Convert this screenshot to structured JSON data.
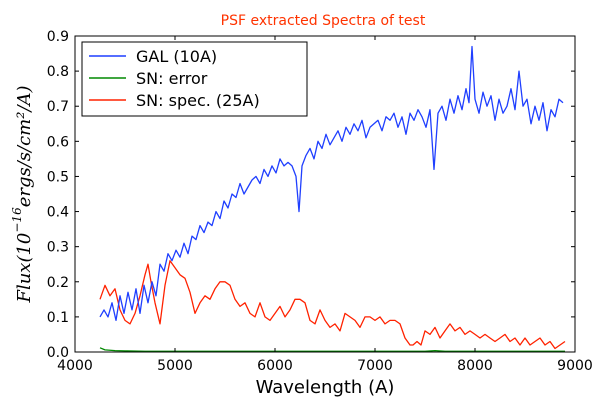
{
  "chart_data": {
    "type": "line",
    "title": "PSF extracted Spectra of test",
    "xlabel": "Wavelength (A)",
    "ylabel": {
      "main": "Flux(10",
      "exponent": "−16",
      "unit": "ergs/s/cm²/A)"
    },
    "xlim": [
      4000,
      9000
    ],
    "ylim": [
      0.0,
      0.9
    ],
    "xticks": [
      "4000",
      "5000",
      "6000",
      "7000",
      "8000",
      "9000"
    ],
    "yticks": [
      "0.0",
      "0.1",
      "0.2",
      "0.3",
      "0.4",
      "0.5",
      "0.6",
      "0.7",
      "0.8",
      "0.9"
    ],
    "legend_position": "top-left",
    "series": [
      {
        "name": "GAL (10A)",
        "color": "#1f3fff",
        "x": [
          4250,
          4290,
          4330,
          4370,
          4410,
          4450,
          4490,
          4530,
          4570,
          4610,
          4650,
          4690,
          4730,
          4770,
          4810,
          4850,
          4890,
          4930,
          4970,
          5010,
          5050,
          5090,
          5130,
          5170,
          5210,
          5250,
          5290,
          5330,
          5370,
          5410,
          5450,
          5490,
          5530,
          5570,
          5610,
          5650,
          5690,
          5730,
          5770,
          5810,
          5850,
          5890,
          5930,
          5970,
          6010,
          6050,
          6090,
          6130,
          6170,
          6210,
          6240,
          6270,
          6310,
          6350,
          6390,
          6430,
          6470,
          6510,
          6550,
          6590,
          6630,
          6670,
          6710,
          6750,
          6790,
          6830,
          6870,
          6910,
          6950,
          6990,
          7030,
          7070,
          7110,
          7150,
          7190,
          7230,
          7270,
          7310,
          7350,
          7390,
          7430,
          7470,
          7510,
          7550,
          7590,
          7630,
          7670,
          7710,
          7750,
          7790,
          7830,
          7870,
          7910,
          7940,
          7970,
          8000,
          8040,
          8080,
          8120,
          8160,
          8200,
          8240,
          8280,
          8320,
          8360,
          8400,
          8440,
          8480,
          8520,
          8560,
          8600,
          8640,
          8680,
          8720,
          8760,
          8800,
          8840,
          8880
        ],
        "y": [
          0.1,
          0.12,
          0.1,
          0.14,
          0.09,
          0.16,
          0.11,
          0.17,
          0.12,
          0.18,
          0.11,
          0.19,
          0.14,
          0.2,
          0.16,
          0.25,
          0.23,
          0.28,
          0.26,
          0.29,
          0.27,
          0.31,
          0.28,
          0.33,
          0.32,
          0.36,
          0.34,
          0.37,
          0.36,
          0.4,
          0.38,
          0.43,
          0.41,
          0.45,
          0.44,
          0.48,
          0.45,
          0.47,
          0.49,
          0.5,
          0.48,
          0.52,
          0.5,
          0.53,
          0.51,
          0.55,
          0.53,
          0.54,
          0.53,
          0.5,
          0.4,
          0.53,
          0.56,
          0.58,
          0.55,
          0.6,
          0.58,
          0.62,
          0.59,
          0.61,
          0.63,
          0.6,
          0.64,
          0.62,
          0.65,
          0.63,
          0.66,
          0.61,
          0.64,
          0.65,
          0.66,
          0.63,
          0.67,
          0.66,
          0.68,
          0.64,
          0.67,
          0.62,
          0.68,
          0.66,
          0.69,
          0.67,
          0.64,
          0.69,
          0.52,
          0.68,
          0.7,
          0.66,
          0.72,
          0.68,
          0.73,
          0.69,
          0.75,
          0.71,
          0.87,
          0.72,
          0.68,
          0.74,
          0.7,
          0.73,
          0.66,
          0.72,
          0.68,
          0.7,
          0.75,
          0.69,
          0.8,
          0.7,
          0.72,
          0.65,
          0.7,
          0.66,
          0.71,
          0.63,
          0.69,
          0.67,
          0.72,
          0.71
        ]
      },
      {
        "name": "SN: error",
        "color": "#008800",
        "x": [
          4250,
          4300,
          4400,
          4500,
          4700,
          5000,
          5500,
          6000,
          6500,
          7000,
          7500,
          7600,
          7700,
          8000,
          8500,
          8900
        ],
        "y": [
          0.012,
          0.006,
          0.004,
          0.003,
          0.002,
          0.002,
          0.002,
          0.002,
          0.002,
          0.002,
          0.002,
          0.004,
          0.002,
          0.002,
          0.002,
          0.002
        ]
      },
      {
        "name": "SN: spec. (25A)",
        "color": "#ff2200",
        "x": [
          4250,
          4300,
          4350,
          4400,
          4450,
          4500,
          4550,
          4600,
          4650,
          4700,
          4730,
          4760,
          4800,
          4850,
          4900,
          4950,
          5000,
          5050,
          5100,
          5150,
          5200,
          5250,
          5300,
          5350,
          5400,
          5450,
          5500,
          5550,
          5600,
          5650,
          5700,
          5750,
          5800,
          5850,
          5900,
          5950,
          6000,
          6050,
          6100,
          6150,
          6200,
          6250,
          6300,
          6350,
          6400,
          6450,
          6500,
          6550,
          6600,
          6650,
          6700,
          6750,
          6800,
          6850,
          6900,
          6950,
          7000,
          7050,
          7100,
          7150,
          7200,
          7250,
          7300,
          7350,
          7380,
          7420,
          7460,
          7500,
          7550,
          7600,
          7650,
          7700,
          7750,
          7800,
          7850,
          7900,
          7950,
          8000,
          8050,
          8100,
          8150,
          8200,
          8250,
          8300,
          8350,
          8400,
          8450,
          8500,
          8550,
          8600,
          8650,
          8700,
          8750,
          8800,
          8850,
          8900
        ],
        "y": [
          0.15,
          0.19,
          0.16,
          0.18,
          0.12,
          0.09,
          0.08,
          0.11,
          0.16,
          0.22,
          0.25,
          0.2,
          0.14,
          0.08,
          0.19,
          0.26,
          0.24,
          0.22,
          0.21,
          0.17,
          0.11,
          0.14,
          0.16,
          0.15,
          0.18,
          0.2,
          0.2,
          0.19,
          0.15,
          0.13,
          0.14,
          0.11,
          0.1,
          0.14,
          0.1,
          0.09,
          0.11,
          0.13,
          0.1,
          0.12,
          0.15,
          0.15,
          0.14,
          0.09,
          0.08,
          0.12,
          0.09,
          0.07,
          0.08,
          0.06,
          0.11,
          0.1,
          0.09,
          0.07,
          0.1,
          0.1,
          0.09,
          0.1,
          0.08,
          0.09,
          0.09,
          0.08,
          0.04,
          0.02,
          0.02,
          0.03,
          0.02,
          0.06,
          0.05,
          0.07,
          0.04,
          0.06,
          0.08,
          0.06,
          0.07,
          0.05,
          0.06,
          0.05,
          0.04,
          0.05,
          0.04,
          0.03,
          0.04,
          0.05,
          0.03,
          0.04,
          0.02,
          0.04,
          0.02,
          0.03,
          0.04,
          0.02,
          0.03,
          0.01,
          0.02,
          0.03
        ]
      }
    ]
  }
}
